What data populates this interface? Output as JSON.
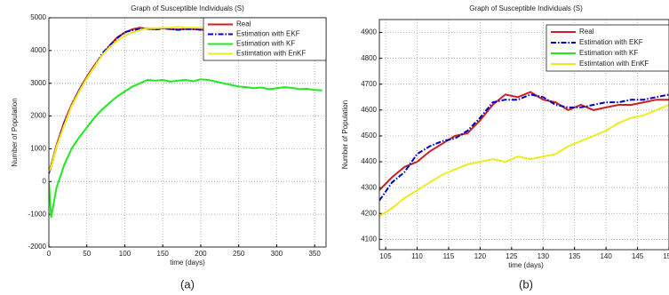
{
  "chart_data": [
    {
      "type": "line",
      "title": "Graph of Susceptible Individuals (S)",
      "xlabel": "time (days)",
      "ylabel": "Number of Population",
      "caption": "(a)",
      "x": [
        0,
        3,
        10,
        20,
        30,
        40,
        50,
        60,
        70,
        80,
        90,
        100,
        110,
        120,
        130,
        140,
        150,
        160,
        170,
        180,
        190,
        200,
        210,
        220,
        230,
        240,
        250,
        260,
        270,
        280,
        290,
        300,
        310,
        320,
        330,
        340,
        350,
        360
      ],
      "series": [
        {
          "name": "Real",
          "color": "#cc2020",
          "values": [
            300,
            500,
            1100,
            1800,
            2350,
            2800,
            3200,
            3550,
            3850,
            4150,
            4400,
            4550,
            4650,
            4700,
            4660,
            4650,
            4680,
            4650,
            4640,
            4660,
            4650,
            4640,
            4620,
            4600,
            4580,
            4550,
            4520,
            4500,
            4480,
            4450,
            4420,
            4400,
            4380,
            4350,
            4320,
            4300,
            4280,
            4260
          ]
        },
        {
          "name": "Estimation with EKF",
          "color": "#0000cc",
          "dash": "dashdot",
          "values": [
            250,
            450,
            1050,
            1750,
            2300,
            2800,
            3150,
            3500,
            3900,
            4150,
            4380,
            4560,
            4620,
            4650,
            4680,
            4640,
            4670,
            4660,
            4630,
            4650,
            4660,
            4630,
            4610,
            4600,
            4570,
            4560,
            4510,
            4490,
            4470,
            4460,
            4410,
            4390,
            4370,
            4360,
            4310,
            4290,
            4270,
            4250
          ]
        },
        {
          "name": "Estimation with KF",
          "color": "#22e822",
          "values": [
            0,
            -1100,
            -200,
            500,
            1000,
            1350,
            1650,
            1950,
            2200,
            2400,
            2600,
            2750,
            2900,
            3000,
            3100,
            3080,
            3100,
            3050,
            3080,
            3100,
            3060,
            3120,
            3100,
            3050,
            3000,
            2950,
            2900,
            2880,
            2850,
            2870,
            2820,
            2850,
            2880,
            2860,
            2820,
            2830,
            2800,
            2780
          ]
        },
        {
          "name": "Estimtation with EnKF",
          "color": "#ecec20",
          "values": [
            300,
            450,
            1050,
            1700,
            2300,
            2750,
            3150,
            3500,
            3850,
            4100,
            4300,
            4450,
            4550,
            4620,
            4680,
            4680,
            4690,
            4700,
            4720,
            4700,
            4700,
            4690,
            4680,
            4660,
            4650,
            4630,
            4610,
            4590,
            4570,
            4550,
            4530,
            4510,
            4490,
            4470,
            4450,
            4440,
            4420,
            4400
          ]
        }
      ],
      "xlim": [
        0,
        365
      ],
      "ylim": [
        -2000,
        5000
      ],
      "xticks": [
        0,
        50,
        100,
        150,
        200,
        250,
        300,
        350
      ],
      "yticks": [
        -2000,
        -1000,
        0,
        1000,
        2000,
        3000,
        4000,
        5000
      ],
      "grid": true,
      "legend": "upper right"
    },
    {
      "type": "line",
      "title": "Graph of Susceptible Individuals (S)",
      "xlabel": "time (days)",
      "ylabel": "Number of Population",
      "caption": "(b)",
      "x": [
        104,
        106,
        108,
        110,
        112,
        114,
        116,
        118,
        120,
        122,
        124,
        126,
        128,
        130,
        132,
        134,
        136,
        138,
        140,
        142,
        144,
        146,
        148,
        150
      ],
      "series": [
        {
          "name": "Real",
          "color": "#cc2020",
          "values": [
            4290,
            4340,
            4380,
            4400,
            4440,
            4470,
            4500,
            4510,
            4560,
            4620,
            4660,
            4650,
            4670,
            4640,
            4630,
            4600,
            4620,
            4600,
            4610,
            4620,
            4620,
            4630,
            4640,
            4640
          ]
        },
        {
          "name": "Estimation with EKF",
          "color": "#0000cc",
          "dash": "dashdot",
          "values": [
            4250,
            4320,
            4360,
            4430,
            4460,
            4480,
            4490,
            4520,
            4570,
            4630,
            4640,
            4640,
            4660,
            4650,
            4620,
            4610,
            4610,
            4620,
            4630,
            4630,
            4640,
            4640,
            4650,
            4660
          ]
        },
        {
          "name": "Estimation with KF",
          "color": "#22e822",
          "values": [
            null,
            null,
            null,
            null,
            null,
            null,
            null,
            null,
            null,
            null,
            null,
            null,
            null,
            null,
            null,
            null,
            null,
            null,
            null,
            null,
            null,
            null,
            null,
            null
          ]
        },
        {
          "name": "Estimtation with EnKF",
          "color": "#ecec20",
          "values": [
            4190,
            4220,
            4260,
            4290,
            4320,
            4350,
            4370,
            4390,
            4400,
            4410,
            4400,
            4420,
            4410,
            4420,
            4430,
            4460,
            4480,
            4500,
            4520,
            4550,
            4570,
            4580,
            4600,
            4620
          ]
        }
      ],
      "xlim": [
        104,
        150
      ],
      "ylim": [
        4060,
        4950
      ],
      "xticks": [
        105,
        110,
        115,
        120,
        125,
        130,
        135,
        140,
        145,
        150
      ],
      "yticks": [
        4100,
        4200,
        4300,
        4400,
        4500,
        4600,
        4700,
        4800,
        4900
      ],
      "grid": true,
      "legend": "upper right"
    }
  ]
}
